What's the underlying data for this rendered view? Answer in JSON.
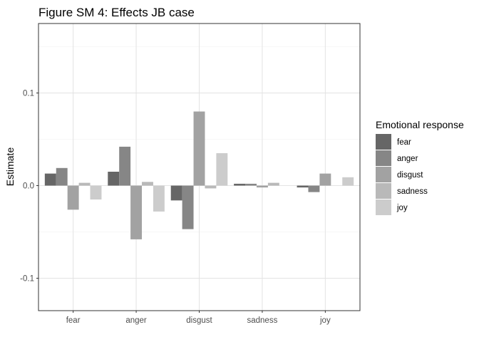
{
  "chart_data": {
    "type": "bar",
    "title": "Figure SM 4: Effects JB case",
    "xlabel": "",
    "ylabel": "Estimate",
    "categories": [
      "fear",
      "anger",
      "disgust",
      "sadness",
      "joy"
    ],
    "ylim": [
      -0.135,
      0.175
    ],
    "yticks": [
      -0.1,
      0.0,
      0.1
    ],
    "ytick_labels": [
      "-0.1",
      "0.0",
      "0.1"
    ],
    "grid": true,
    "legend_title": "Emotional response",
    "legend_position": "right",
    "series": [
      {
        "name": "fear",
        "color": "#666666",
        "values": [
          0.013,
          0.015,
          -0.016,
          0.002,
          -0.002
        ]
      },
      {
        "name": "anger",
        "color": "#868686",
        "values": [
          0.019,
          0.042,
          -0.047,
          0.002,
          -0.007
        ]
      },
      {
        "name": "disgust",
        "color": "#a2a2a2",
        "values": [
          -0.026,
          -0.058,
          0.08,
          -0.002,
          0.013
        ]
      },
      {
        "name": "sadness",
        "color": "#b9b9b9",
        "values": [
          0.003,
          0.004,
          -0.003,
          0.003,
          0.0
        ]
      },
      {
        "name": "joy",
        "color": "#cccccc",
        "values": [
          -0.015,
          -0.028,
          0.035,
          0.0,
          0.009
        ]
      }
    ]
  }
}
